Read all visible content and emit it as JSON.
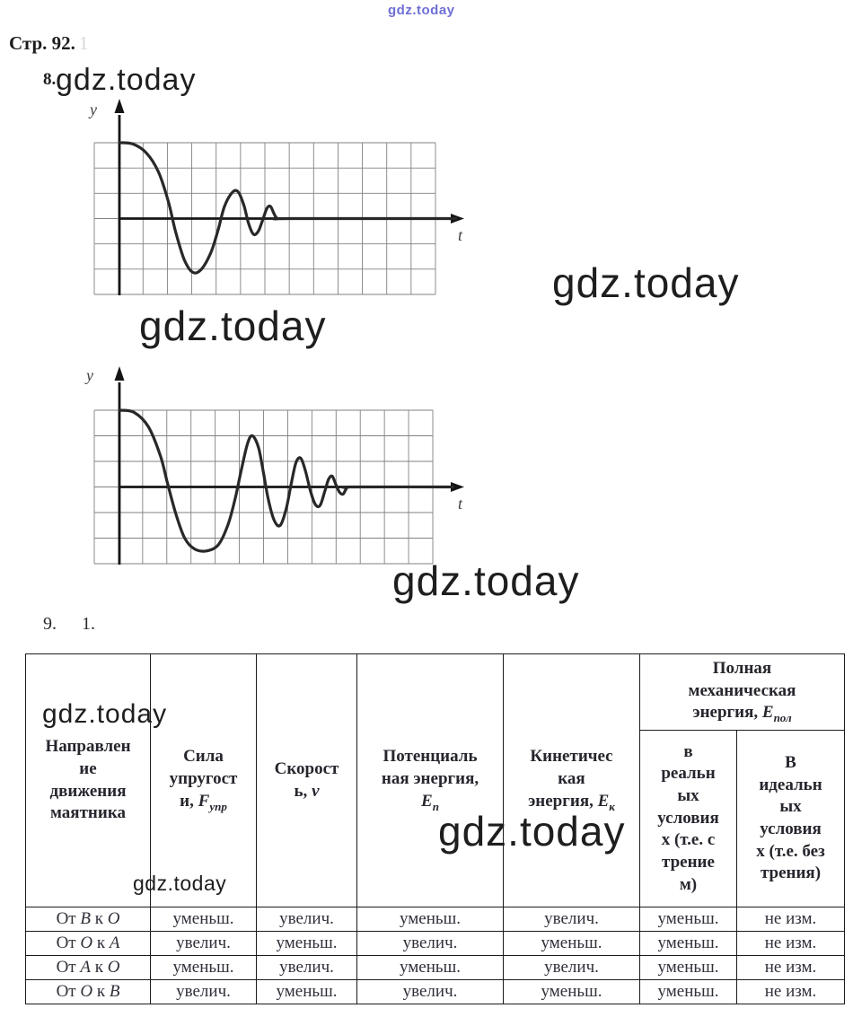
{
  "watermark": {
    "text": "gdz.today"
  },
  "page": {
    "header_note": "Стр. 92.",
    "header_note_faint": "1"
  },
  "problems": {
    "p8": "8.",
    "p9_num": "9.",
    "p9_sub": "1."
  },
  "chart_data": [
    {
      "id": "graph1",
      "type": "line",
      "title": "",
      "xlabel": "t",
      "ylabel": "y",
      "legend": false,
      "grid": {
        "visible": true,
        "cols": 14,
        "rows": 6
      },
      "x_range_cells": [
        0,
        14
      ],
      "y_range_cells": [
        -3,
        3
      ],
      "note": "damped oscillation starting at y=+3 cells, settling to zero near t≈6.5 cells",
      "points_cells": [
        [
          0,
          3.0
        ],
        [
          0.55,
          2.95
        ],
        [
          1.1,
          2.6
        ],
        [
          1.6,
          1.85
        ],
        [
          2.0,
          0.7
        ],
        [
          2.3,
          -0.5
        ],
        [
          2.65,
          -1.6
        ],
        [
          3.0,
          -2.12
        ],
        [
          3.35,
          -2.02
        ],
        [
          3.75,
          -1.35
        ],
        [
          4.05,
          -0.45
        ],
        [
          4.3,
          0.45
        ],
        [
          4.6,
          1.0
        ],
        [
          4.85,
          1.08
        ],
        [
          5.1,
          0.55
        ],
        [
          5.3,
          -0.2
        ],
        [
          5.5,
          -0.62
        ],
        [
          5.7,
          -0.5
        ],
        [
          5.88,
          -0.05
        ],
        [
          6.05,
          0.4
        ],
        [
          6.2,
          0.48
        ],
        [
          6.35,
          0.18
        ],
        [
          6.5,
          0.0
        ],
        [
          7.0,
          0.0
        ],
        [
          13.8,
          0.0
        ]
      ]
    },
    {
      "id": "graph2",
      "type": "line",
      "title": "",
      "xlabel": "t",
      "ylabel": "y",
      "legend": false,
      "grid": {
        "visible": true,
        "cols": 14,
        "rows": 6
      },
      "x_range_cells": [
        0,
        14
      ],
      "y_range_cells": [
        -3,
        3
      ],
      "note": "damped oscillation starting at y=+3 cells with more cycles, settling to zero near t≈9.5 cells",
      "points_cells": [
        [
          0,
          3.0
        ],
        [
          0.6,
          2.92
        ],
        [
          1.2,
          2.35
        ],
        [
          1.7,
          1.2
        ],
        [
          2.0,
          0.1
        ],
        [
          2.35,
          -1.1
        ],
        [
          2.7,
          -2.0
        ],
        [
          3.1,
          -2.42
        ],
        [
          3.6,
          -2.5
        ],
        [
          4.1,
          -2.25
        ],
        [
          4.5,
          -1.45
        ],
        [
          4.8,
          -0.4
        ],
        [
          5.05,
          0.7
        ],
        [
          5.3,
          1.7
        ],
        [
          5.5,
          2.0
        ],
        [
          5.75,
          1.55
        ],
        [
          5.95,
          0.6
        ],
        [
          6.15,
          -0.45
        ],
        [
          6.4,
          -1.3
        ],
        [
          6.65,
          -1.5
        ],
        [
          6.9,
          -0.85
        ],
        [
          7.1,
          0.1
        ],
        [
          7.3,
          0.95
        ],
        [
          7.5,
          1.12
        ],
        [
          7.7,
          0.6
        ],
        [
          7.9,
          -0.15
        ],
        [
          8.1,
          -0.68
        ],
        [
          8.3,
          -0.72
        ],
        [
          8.5,
          -0.15
        ],
        [
          8.65,
          0.3
        ],
        [
          8.8,
          0.42
        ],
        [
          8.95,
          0.1
        ],
        [
          9.1,
          -0.2
        ],
        [
          9.25,
          -0.28
        ],
        [
          9.4,
          -0.05
        ],
        [
          9.6,
          0.0
        ],
        [
          13.8,
          0.0
        ]
      ]
    }
  ],
  "table": {
    "headers": [
      {
        "id": "direction",
        "pre": "Направлен\nие\nдвижения\nмаятника"
      },
      {
        "id": "force",
        "pre": "Сила\nупругост\nи, ",
        "base": "F",
        "sub": "упр"
      },
      {
        "id": "speed",
        "pre": "Скорост\nь, ",
        "base": "v",
        "sub": ""
      },
      {
        "id": "potential",
        "pre": "Потенциаль\nная энергия,\n",
        "base": "E",
        "sub": "п"
      },
      {
        "id": "kinetic",
        "pre": "Кинетичес\nкая\nэнергия, ",
        "base": "E",
        "sub": "к"
      },
      {
        "id": "total",
        "pre": "Полная\nмеханическая\nэнергия, ",
        "base": "E",
        "sub": "пол"
      },
      {
        "id": "real",
        "pre": "в\nреальн\nых\nусловия\nх (т.е. с\nтрение\nм)"
      },
      {
        "id": "ideal",
        "pre": "В\nидеальн\nых\nусловия\nх (т.е. без\nтрения)"
      }
    ],
    "rows": [
      {
        "direction": [
          [
            "От ",
            false
          ],
          [
            "B",
            true
          ],
          [
            " к ",
            false
          ],
          [
            "O",
            true
          ]
        ],
        "cells": [
          "уменьш.",
          "увелич.",
          "уменьш.",
          "увелич.",
          "уменьш.",
          "не изм."
        ]
      },
      {
        "direction": [
          [
            "От ",
            false
          ],
          [
            "O",
            true
          ],
          [
            " к ",
            false
          ],
          [
            "A",
            true
          ]
        ],
        "cells": [
          "увелич.",
          "уменьш.",
          "увелич.",
          "уменьш.",
          "уменьш.",
          "не изм."
        ]
      },
      {
        "direction": [
          [
            "От ",
            false
          ],
          [
            "A",
            true
          ],
          [
            " к ",
            false
          ],
          [
            "O",
            true
          ]
        ],
        "cells": [
          "уменьш.",
          "увелич.",
          "уменьш.",
          "увелич.",
          "уменьш.",
          "не изм."
        ]
      },
      {
        "direction": [
          [
            "От ",
            false
          ],
          [
            "O",
            true
          ],
          [
            " к ",
            false
          ],
          [
            "B",
            true
          ]
        ],
        "cells": [
          "увелич.",
          "уменьш.",
          "увелич.",
          "уменьш.",
          "уменьш.",
          "не изм."
        ]
      }
    ]
  }
}
